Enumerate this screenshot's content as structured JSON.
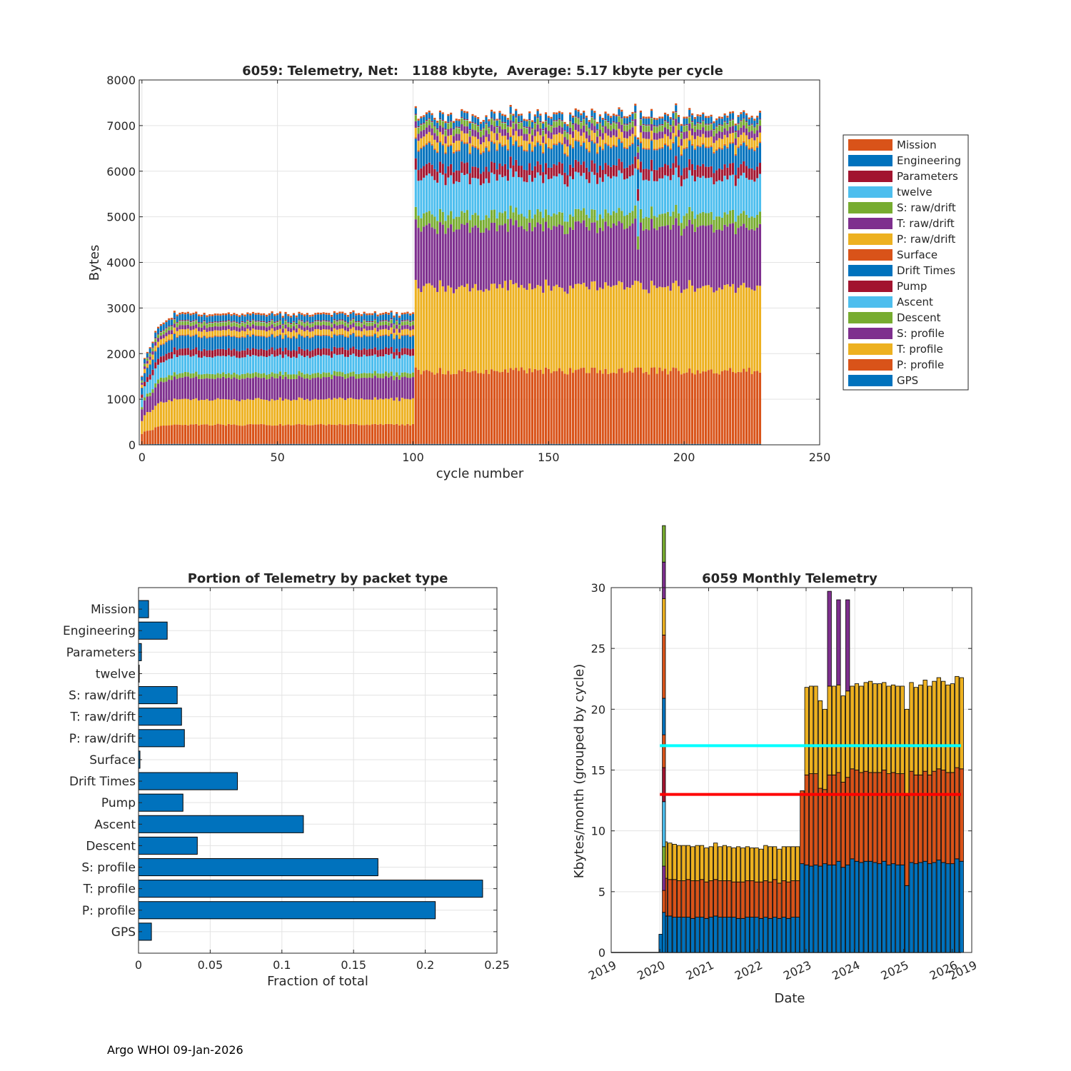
{
  "chart_data": [
    {
      "type": "bar",
      "stacked": true,
      "title": "6059: Telemetry, Net:   1188 kbyte,  Average: 5.17 kbyte per cycle",
      "xlabel": "cycle number",
      "ylabel": "Bytes",
      "xlim": [
        -1,
        250
      ],
      "ylim": [
        0,
        8000
      ],
      "xticks": [
        0,
        50,
        100,
        150,
        200,
        250
      ],
      "yticks": [
        0,
        1000,
        2000,
        3000,
        4000,
        5000,
        6000,
        7000,
        8000
      ],
      "grid": true,
      "legend_position": "right",
      "cycle_range": [
        0,
        228
      ],
      "series": [
        {
          "name": "GPS",
          "color": "#0072BD",
          "era1": 20,
          "era2": 20
        },
        {
          "name": "P: profile",
          "color": "#D95319",
          "era1": 420,
          "era2": 1600
        },
        {
          "name": "T: profile",
          "color": "#EDB120",
          "era1": 560,
          "era2": 1850
        },
        {
          "name": "S: profile",
          "color": "#7E2F8E",
          "era1": 470,
          "era2": 1320
        },
        {
          "name": "Descent",
          "color": "#77AC30",
          "era1": 100,
          "era2": 280
        },
        {
          "name": "Ascent",
          "color": "#4DBEEE",
          "era1": 380,
          "era2": 800
        },
        {
          "name": "Pump",
          "color": "#A2142F",
          "era1": 150,
          "era2": 250
        },
        {
          "name": "Drift Times",
          "color": "#0072BD",
          "era1": 280,
          "era2": 420
        },
        {
          "name": "Surface",
          "color": "#D95319",
          "era1": 20,
          "era2": 30
        },
        {
          "name": "P: raw/drift",
          "color": "#EDB120",
          "era1": 120,
          "era2": 200
        },
        {
          "name": "T: raw/drift",
          "color": "#7E2F8E",
          "era1": 90,
          "era2": 150
        },
        {
          "name": "S: raw/drift",
          "color": "#77AC30",
          "era1": 80,
          "era2": 130
        },
        {
          "name": "twelve",
          "color": "#4DBEEE",
          "era1": 10,
          "era2": 10
        },
        {
          "name": "Parameters",
          "color": "#A2142F",
          "era1": 20,
          "era2": 20
        },
        {
          "name": "Engineering",
          "color": "#0072BD",
          "era1": 130,
          "era2": 130
        },
        {
          "name": "Mission",
          "color": "#D95319",
          "era1": 40,
          "era2": 40
        }
      ],
      "notes": "Cycles 0-100 total about 2700-2900 bytes; cycles 101-228 total about 7000-7300 bytes"
    },
    {
      "type": "barh",
      "title": "Portion of Telemetry by packet type",
      "xlabel": "Fraction of total",
      "xlim": [
        0,
        0.25
      ],
      "xticks": [
        0,
        0.05,
        0.1,
        0.15,
        0.2,
        0.25
      ],
      "xticklabels": [
        "0",
        "0.05",
        "0.1",
        "0.15",
        "0.2",
        "0.25"
      ],
      "grid": true,
      "color": "#0072BD",
      "categories": [
        "Mission",
        "Engineering",
        "Parameters",
        "twelve",
        "S: raw/drift",
        "T: raw/drift",
        "P: raw/drift",
        "Surface",
        "Drift Times",
        "Pump",
        "Ascent",
        "Descent",
        "S: profile",
        "T: profile",
        "P: profile",
        "GPS"
      ],
      "values": [
        0.007,
        0.02,
        0.002,
        0.0005,
        0.027,
        0.03,
        0.032,
        0.001,
        0.069,
        0.031,
        0.115,
        0.041,
        0.167,
        0.24,
        0.207,
        0.009
      ]
    },
    {
      "type": "bar",
      "stacked": true,
      "title": "6059 Monthly Telemetry",
      "xlabel": "Date",
      "ylabel": "Kbytes/month (grouped by cycle)",
      "ylim": [
        0,
        30
      ],
      "yticks": [
        0,
        5,
        10,
        15,
        20,
        25,
        30
      ],
      "xlim": [
        2019.0,
        2026.4
      ],
      "xticks": [
        2019,
        2020,
        2021,
        2022,
        2023,
        2024,
        2025,
        2026,
        2026.4
      ],
      "xticklabels": [
        "2019",
        "2020",
        "2021",
        "2022",
        "2023",
        "2024",
        "2025",
        "2026",
        "2019"
      ],
      "grid": true,
      "reference_lines": [
        {
          "y": 17,
          "color": "#00FFFF"
        },
        {
          "y": 13,
          "color": "#FF0000"
        }
      ],
      "spike": {
        "x": 2020.05,
        "segments": [
          {
            "value": 3.3,
            "color": "#0072BD"
          },
          {
            "value": 1.8,
            "color": "#D95319"
          },
          {
            "value": 2.0,
            "color": "#7E2F8E"
          },
          {
            "value": 1.6,
            "color": "#77AC30"
          },
          {
            "value": 3.7,
            "color": "#4DBEEE"
          },
          {
            "value": 2.8,
            "color": "#A2142F"
          },
          {
            "value": 2.7,
            "color": "#D95319"
          },
          {
            "value": 3.0,
            "color": "#0072BD"
          },
          {
            "value": 5.2,
            "color": "#D95319"
          },
          {
            "value": 3.0,
            "color": "#EDB120"
          },
          {
            "value": 3.0,
            "color": "#7E2F8E"
          },
          {
            "value": 3.0,
            "color": "#77AC30"
          }
        ]
      },
      "series": [
        {
          "name": "Blue",
          "color": "#0072BD",
          "values": [
            1.5,
            3.0,
            3.0,
            2.9,
            2.9,
            2.9,
            2.9,
            2.8,
            2.9,
            2.9,
            2.8,
            2.9,
            3.0,
            2.9,
            2.9,
            2.9,
            2.9,
            2.8,
            2.8,
            2.9,
            2.9,
            2.9,
            2.8,
            2.9,
            2.8,
            2.9,
            2.8,
            2.9,
            2.8,
            2.9,
            2.9,
            7.3,
            7.2,
            7.1,
            7.2,
            7.1,
            7.3,
            7.2,
            7.2,
            7.5,
            7.0,
            7.2,
            7.7,
            7.5,
            7.4,
            7.5,
            7.5,
            7.4,
            7.3,
            7.5,
            7.2,
            7.3,
            7.2,
            7.2,
            5.5,
            7.4,
            7.3,
            7.4,
            7.5,
            7.3,
            7.4,
            7.6,
            7.4,
            7.3,
            7.3,
            7.7,
            7.5
          ]
        },
        {
          "name": "Orange",
          "color": "#D95319",
          "values": [
            0,
            3.1,
            3.0,
            3.1,
            3.0,
            3.0,
            3.1,
            3.1,
            3.0,
            3.1,
            3.0,
            3.0,
            3.0,
            3.0,
            3.0,
            3.0,
            2.9,
            3.0,
            3.0,
            3.0,
            3.0,
            2.9,
            3.0,
            3.0,
            3.0,
            3.1,
            2.9,
            3.0,
            3.0,
            3.0,
            3.0,
            6.0,
            7.4,
            7.6,
            7.5,
            6.4,
            6.1,
            7.4,
            7.4,
            7.3,
            7.0,
            7.2,
            7.4,
            7.5,
            7.4,
            7.4,
            7.3,
            7.4,
            7.5,
            7.5,
            7.5,
            7.5,
            7.5,
            7.5,
            7.4,
            7.5,
            7.3,
            7.2,
            7.4,
            7.3,
            7.5,
            7.5,
            7.6,
            7.5,
            7.5,
            7.5,
            7.6
          ]
        },
        {
          "name": "Yellow",
          "color": "#EDB120",
          "values": [
            0,
            3.0,
            3.0,
            2.9,
            2.9,
            2.9,
            2.8,
            2.8,
            2.9,
            2.8,
            2.8,
            2.8,
            3.0,
            2.8,
            2.9,
            2.8,
            2.8,
            2.9,
            2.8,
            2.8,
            2.7,
            2.8,
            2.7,
            2.9,
            2.9,
            2.7,
            2.8,
            2.8,
            2.9,
            2.8,
            2.8,
            0,
            7.2,
            7.2,
            7.2,
            7.2,
            6.6,
            7.3,
            7.3,
            7.2,
            7.1,
            7.1,
            6.8,
            7.1,
            7.1,
            7.3,
            7.5,
            7.3,
            7.3,
            7.2,
            7.2,
            7.2,
            7.2,
            7.2,
            7.1,
            7.3,
            7.2,
            7.4,
            7.5,
            7.3,
            7.4,
            7.5,
            7.3,
            7.2,
            7.3,
            7.5,
            7.5
          ]
        },
        {
          "name": "Purple",
          "color": "#7E2F8E",
          "values": [
            0,
            0,
            0,
            0,
            0,
            0,
            0,
            0,
            0,
            0,
            0,
            0,
            0,
            0,
            0,
            0,
            0,
            0,
            0,
            0,
            0,
            0,
            0,
            0,
            0,
            0,
            0,
            0,
            0,
            0,
            0,
            0,
            0,
            0,
            0,
            0,
            0,
            7.8,
            0,
            7.0,
            0,
            7.5,
            0,
            0,
            0,
            0,
            0,
            0,
            0,
            0,
            0,
            0,
            0,
            0,
            0,
            0,
            0,
            0,
            0,
            0,
            0,
            0,
            0,
            0,
            0,
            0,
            0
          ]
        }
      ],
      "bar_x_start": 2019.98,
      "bar_x_step": 0.0935
    }
  ],
  "footer": "Argo WHOI 09-Jan-2026"
}
